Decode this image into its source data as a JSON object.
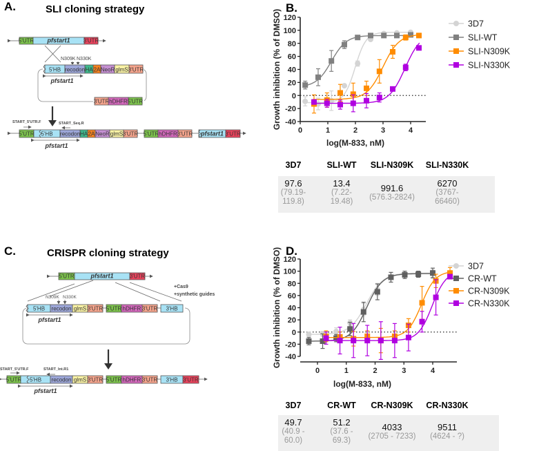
{
  "panels": {
    "A": {
      "label": "A.",
      "title": "SLI cloning strategy"
    },
    "B": {
      "label": "B."
    },
    "C": {
      "label": "C.",
      "title": "CRISPR cloning strategy"
    },
    "D": {
      "label": "D."
    }
  },
  "segment_colors": {
    "utr5": "#7cc24c",
    "gene": "#a8e2f5",
    "utr3end": "#e8435c",
    "recodon": "#9ca6d8",
    "ha": "#3fb88c",
    "t2a": "#f5821f",
    "neor": "#c48fd1",
    "glms": "#f8f1a4",
    "utr3": "#f5a48c",
    "hdhfr": "#d167ba",
    "hb": "#a8e2f5"
  },
  "diagram_a": {
    "top": [
      "5'UTR",
      "pfstart1",
      "3'UTR"
    ],
    "mutations": [
      "N309K",
      "N330K"
    ],
    "plasmid_row1": [
      "5'HB",
      "recodon",
      "HA",
      "2A",
      "NeoR",
      "glmS",
      "3'UTR"
    ],
    "plasmid_row2": [
      "3'UTR",
      "hDHFR",
      "5'UTR"
    ],
    "plasmid_gene_label": "pfstart1",
    "primers": [
      "START_5'UTR.F",
      "START_Seq.R"
    ],
    "result": [
      "5'UTR",
      "5'HB",
      "recodon",
      "HA",
      "2A",
      "NeoR",
      "glmS",
      "3'UTR",
      "5'UTR",
      "hDHFR",
      "3'UTR",
      "pfstart1",
      "3'UTR"
    ],
    "result_gene_label": "pfstart1"
  },
  "diagram_c": {
    "top": [
      "5'UTR",
      "pfstart1",
      "3'UTR"
    ],
    "additions": [
      "+Cas9",
      "+synthetic guides"
    ],
    "mutations": [
      "N309K",
      "N330K"
    ],
    "plasmid": [
      "5'HB",
      "recodon",
      "glmS",
      "3'UTR",
      "5'UTR",
      "hDHFR",
      "3'UTR",
      "3'HB"
    ],
    "plasmid_gene_label": "pfstart1",
    "primers": [
      "START_5'UTR.F",
      "START_Int.R1"
    ],
    "result": [
      "5'UTR",
      "5'HB",
      "recodon",
      "glmS",
      "3'UTR",
      "5'UTR",
      "hDHFR",
      "3'UTR",
      "3'HB",
      "3'UTR"
    ],
    "result_gene_label": "pfstart1"
  },
  "chart_data": [
    {
      "id": "B",
      "type": "scatter",
      "title": "",
      "xlabel": "log(M-833, nM)",
      "ylabel": "Growth inhibition (% of  DMSO)",
      "xlim": [
        0,
        4.5
      ],
      "ylim": [
        -40,
        120
      ],
      "xticks": [
        0,
        1,
        2,
        3,
        4
      ],
      "yticks": [
        -40,
        -20,
        0,
        20,
        40,
        60,
        80,
        100,
        120
      ],
      "reference_line": 0,
      "legend": "right",
      "series": [
        {
          "name": "3D7",
          "marker": "circle",
          "color": "#d4d4d4",
          "x": [
            0.18,
            0.65,
            1.13,
            1.6,
            2.08,
            2.55,
            3.03,
            3.5,
            4.0
          ],
          "y": [
            -9,
            -13,
            -8,
            15,
            49,
            86,
            95,
            96,
            97
          ],
          "err": [
            7,
            9,
            15,
            2,
            4,
            2,
            2,
            2,
            2
          ],
          "fit": {
            "bottom": -11,
            "top": 97,
            "logEC50": 1.99,
            "hill": 2.2
          }
        },
        {
          "name": "SLI-WT",
          "marker": "square",
          "color": "#808080",
          "x": [
            0.18,
            0.65,
            1.13,
            1.6,
            2.08,
            2.55,
            3.03,
            3.5,
            4.0
          ],
          "y": [
            16,
            28,
            53,
            78,
            89,
            92,
            92,
            92,
            93
          ],
          "err": [
            6,
            13,
            16,
            6,
            2,
            2,
            2,
            2,
            2
          ],
          "fit": {
            "bottom": 13,
            "top": 92,
            "logEC50": 1.13,
            "hill": 1.6
          }
        },
        {
          "name": "SLI-N309K",
          "marker": "square",
          "color": "#ff8c00",
          "x": [
            0.5,
            0.97,
            1.45,
            1.92,
            2.4,
            2.87,
            3.35,
            3.82,
            4.3
          ],
          "y": [
            -13,
            -7,
            4,
            2,
            11,
            37,
            67,
            89,
            92
          ],
          "err": [
            14,
            11,
            13,
            17,
            11,
            18,
            10,
            4,
            2
          ],
          "fit": {
            "bottom": -6,
            "top": 94,
            "logEC50": 3.0,
            "hill": 1.5
          }
        },
        {
          "name": "SLI-N330K",
          "marker": "square",
          "color": "#b000e0",
          "x": [
            0.5,
            0.97,
            1.45,
            1.92,
            2.4,
            2.87,
            3.35,
            3.82,
            4.3
          ],
          "y": [
            -10,
            -12,
            -14,
            -12,
            -8,
            -3,
            10,
            43,
            73
          ],
          "err": [
            3,
            6,
            7,
            13,
            11,
            7,
            2,
            5,
            3
          ],
          "fit": {
            "bottom": -12,
            "top": 96,
            "logEC50": 3.8,
            "hill": 1.5
          }
        }
      ],
      "table": {
        "headers": [
          "3D7",
          "SLI-WT",
          "SLI-N309K",
          "SLI-N330K"
        ],
        "values": [
          "97.6",
          "13.4",
          "991.6",
          "6270"
        ],
        "ci": [
          "(79.19-\n119.8)",
          "(7.22-\n19.48)",
          "(576.3-2824)",
          "(3767-\n66460)"
        ]
      }
    },
    {
      "id": "D",
      "type": "scatter",
      "title": "",
      "xlabel": "log(M-833, nM)",
      "ylabel": "Growth inhibition (% of DMSO)",
      "xlim": [
        -0.6,
        4.8
      ],
      "ylim": [
        -40,
        120
      ],
      "xticks": [
        0,
        1,
        2,
        3,
        4
      ],
      "yticks": [
        -40,
        -20,
        0,
        20,
        40,
        60,
        80,
        100,
        120
      ],
      "reference_line": 0,
      "legend": "right",
      "series": [
        {
          "name": "3D7",
          "marker": "circle",
          "color": "#d4d4d4",
          "x": [
            -0.3,
            0.18,
            0.65,
            1.13,
            1.6,
            2.08,
            2.55,
            3.03,
            3.5,
            4.0
          ],
          "y": [
            -4,
            -3,
            1,
            15,
            37,
            70,
            90,
            94,
            95,
            96
          ],
          "err": [
            4,
            4,
            6,
            5,
            10,
            10,
            8,
            6,
            5,
            6
          ],
          "fit": {
            "bottom": -4,
            "top": 97,
            "logEC50": 1.7,
            "hill": 1.5
          }
        },
        {
          "name": "CR-WT",
          "marker": "square",
          "color": "#606060",
          "x": [
            -0.3,
            0.18,
            0.65,
            1.13,
            1.6,
            2.08,
            2.55,
            3.03,
            3.5,
            4.0
          ],
          "y": [
            -15,
            -15,
            -10,
            5,
            33,
            66,
            90,
            94,
            95,
            97
          ],
          "err": [
            6,
            12,
            6,
            11,
            16,
            13,
            8,
            6,
            5,
            8
          ],
          "fit": {
            "bottom": -15,
            "top": 96,
            "logEC50": 1.71,
            "hill": 1.6
          }
        },
        {
          "name": "CR-N309K",
          "marker": "square",
          "color": "#ff8c00",
          "x": [
            0.3,
            0.78,
            1.25,
            1.73,
            2.2,
            2.68,
            3.16,
            3.63,
            4.11,
            4.6
          ],
          "y": [
            -7,
            -8,
            -11,
            -7,
            -14,
            -7,
            11,
            48,
            84,
            97
          ],
          "err": [
            9,
            8,
            12,
            9,
            20,
            9,
            11,
            27,
            11,
            9
          ],
          "fit": {
            "bottom": -9,
            "top": 100,
            "logEC50": 3.61,
            "hill": 1.8
          }
        },
        {
          "name": "CR-N330K",
          "marker": "square",
          "color": "#b000e0",
          "x": [
            0.3,
            0.78,
            1.25,
            1.73,
            2.2,
            2.68,
            3.16,
            3.63,
            4.11,
            4.6
          ],
          "y": [
            -10,
            -14,
            -14,
            -14,
            -14,
            -14,
            -9,
            17,
            57,
            91
          ],
          "err": [
            10,
            22,
            28,
            25,
            31,
            28,
            22,
            17,
            29,
            3
          ],
          "fit": {
            "bottom": -14,
            "top": 100,
            "logEC50": 3.98,
            "hill": 1.8
          }
        }
      ],
      "table": {
        "headers": [
          "3D7",
          "CR-WT",
          "CR-N309K",
          "CR-N330K"
        ],
        "values": [
          "49.7",
          "51.2",
          "4033",
          "9511"
        ],
        "ci": [
          "(40.9 -\n60.0)",
          "(37.6 -\n69.3)",
          "(2705 - 7233)",
          "(4624 - ?)"
        ]
      }
    }
  ]
}
